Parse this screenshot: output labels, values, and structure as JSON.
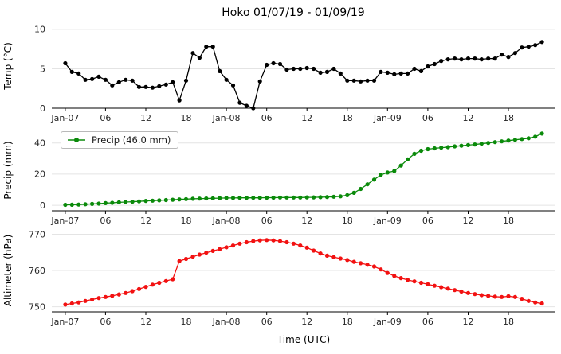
{
  "title": "Hoko 01/07/19 - 01/09/19",
  "xlabel": "Time (UTC)",
  "x_tick_positions": [
    0,
    6,
    12,
    18,
    24,
    30,
    36,
    42,
    48,
    54,
    60,
    66
  ],
  "x_tick_labels": [
    "Jan-07",
    "06",
    "12",
    "18",
    "Jan-08",
    "06",
    "12",
    "18",
    "Jan-09",
    "06",
    "12",
    "18"
  ],
  "x_hours": [
    0,
    1,
    2,
    3,
    4,
    5,
    6,
    7,
    8,
    9,
    10,
    11,
    12,
    13,
    14,
    15,
    16,
    17,
    18,
    19,
    20,
    21,
    22,
    23,
    24,
    25,
    26,
    27,
    28,
    29,
    30,
    31,
    32,
    33,
    34,
    35,
    36,
    37,
    38,
    39,
    40,
    41,
    42,
    43,
    44,
    45,
    46,
    47,
    48,
    49,
    50,
    51,
    52,
    53,
    54,
    55,
    56,
    57,
    58,
    59,
    60,
    61,
    62,
    63,
    64,
    65,
    66,
    67,
    68,
    69,
    70,
    71
  ],
  "chart_data": [
    {
      "type": "line",
      "name": "temperature",
      "ylabel": "Temp (°C)",
      "color": "#000000",
      "ylim": [
        0,
        10.7
      ],
      "yticks": [
        0,
        5,
        10
      ],
      "values": [
        5.7,
        4.6,
        4.4,
        3.6,
        3.7,
        4.0,
        3.6,
        2.9,
        3.3,
        3.6,
        3.5,
        2.7,
        2.7,
        2.6,
        2.8,
        3.0,
        3.3,
        1.0,
        3.5,
        7.0,
        6.4,
        7.8,
        7.8,
        4.7,
        3.6,
        2.9,
        0.7,
        0.3,
        0.0,
        3.4,
        5.5,
        5.7,
        5.6,
        4.9,
        5.0,
        5.0,
        5.1,
        5.0,
        4.5,
        4.6,
        5.0,
        4.4,
        3.5,
        3.5,
        3.4,
        3.5,
        3.5,
        4.6,
        4.5,
        4.3,
        4.4,
        4.4,
        5.0,
        4.7,
        5.3,
        5.6,
        6.0,
        6.2,
        6.3,
        6.2,
        6.3,
        6.3,
        6.2,
        6.3,
        6.3,
        6.8,
        6.5,
        7.0,
        7.7,
        7.8,
        8.0,
        8.4
      ]
    },
    {
      "type": "line",
      "name": "precip",
      "ylabel": "Precip (mm)",
      "color": "#0a8a0a",
      "legend": "Precip (46.0 mm)",
      "ylim": [
        -3.5,
        48.5
      ],
      "yticks": [
        0,
        20,
        40
      ],
      "values": [
        0.3,
        0.4,
        0.5,
        0.7,
        0.9,
        1.1,
        1.4,
        1.6,
        1.9,
        2.1,
        2.3,
        2.5,
        2.8,
        3.0,
        3.2,
        3.4,
        3.6,
        3.8,
        4.0,
        4.2,
        4.3,
        4.4,
        4.5,
        4.6,
        4.7,
        4.7,
        4.8,
        4.8,
        4.8,
        4.8,
        4.9,
        4.9,
        5.0,
        5.0,
        5.0,
        5.0,
        5.1,
        5.1,
        5.2,
        5.3,
        5.5,
        5.8,
        6.5,
        8.0,
        10.5,
        13.5,
        16.5,
        19.5,
        21.0,
        22.0,
        25.5,
        29.5,
        33.0,
        35.0,
        36.0,
        36.5,
        37.0,
        37.3,
        37.8,
        38.2,
        38.6,
        39.0,
        39.5,
        40.0,
        40.5,
        41.0,
        41.5,
        42.0,
        42.5,
        43.0,
        44.0,
        46.0
      ]
    },
    {
      "type": "line",
      "name": "altimeter",
      "ylabel": "Altimeter (hPa)",
      "color": "#f21111",
      "ylim": [
        748.6,
        771.2
      ],
      "yticks": [
        750,
        760,
        770
      ],
      "values": [
        750.6,
        750.9,
        751.2,
        751.6,
        752.0,
        752.4,
        752.7,
        753.0,
        753.4,
        753.8,
        754.3,
        754.9,
        755.5,
        756.1,
        756.6,
        757.1,
        757.6,
        762.6,
        763.2,
        763.8,
        764.4,
        764.9,
        765.4,
        765.9,
        766.4,
        766.9,
        767.4,
        767.8,
        768.1,
        768.3,
        768.4,
        768.3,
        768.1,
        767.8,
        767.4,
        766.9,
        766.3,
        765.5,
        764.7,
        764.1,
        763.7,
        763.3,
        762.9,
        762.4,
        762.0,
        761.6,
        761.1,
        760.3,
        759.3,
        758.5,
        757.9,
        757.4,
        757.0,
        756.6,
        756.2,
        755.8,
        755.4,
        755.0,
        754.6,
        754.2,
        753.8,
        753.5,
        753.2,
        753.0,
        752.8,
        752.7,
        752.9,
        752.7,
        752.2,
        751.6,
        751.2,
        750.9
      ]
    }
  ]
}
